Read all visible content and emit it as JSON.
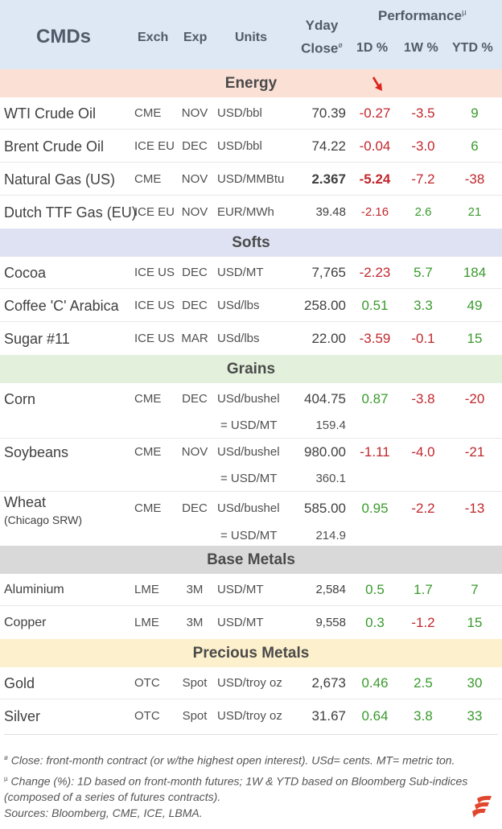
{
  "header": {
    "title": "CMDs",
    "exch": "Exch",
    "exp": "Exp",
    "units": "Units",
    "yday_line1": "Yday",
    "yday_line2": "Close",
    "yday_mark": "ø",
    "performance": "Performance",
    "performance_mark": "µ",
    "d1": "1D %",
    "w1": "1W %",
    "ytd": "YTD %"
  },
  "colors": {
    "header_bg": "#dde8f4",
    "energy_bg": "#fbe0d6",
    "softs_bg": "#dfe2f3",
    "grains_bg": "#e3f1dc",
    "base_metals_bg": "#d9d9d9",
    "precious_bg": "#fdf0cc",
    "negative": "#c0272d",
    "positive": "#3a9a2e",
    "arrow": "#d9261c",
    "logo": "#e2452d"
  },
  "sections": {
    "energy": "Energy",
    "softs": "Softs",
    "grains": "Grains",
    "base_metals": "Base Metals",
    "precious_metals": "Precious Metals"
  },
  "rows": {
    "wti": {
      "name": "WTI Crude Oil",
      "exch": "CME",
      "exp": "NOV",
      "units": "USD/bbl",
      "close": "70.39",
      "d1": "-0.27",
      "w1": "-3.5",
      "ytd": "9"
    },
    "brent": {
      "name": "Brent Crude Oil",
      "exch": "ICE EU",
      "exp": "DEC",
      "units": "USD/bbl",
      "close": "74.22",
      "d1": "-0.04",
      "w1": "-3.0",
      "ytd": "6"
    },
    "natgas": {
      "name": "Natural Gas (US)",
      "exch": "CME",
      "exp": "NOV",
      "units": "USD/MMBtu",
      "close": "2.367",
      "d1": "-5.24",
      "w1": "-7.2",
      "ytd": "-38"
    },
    "ttf": {
      "name": "Dutch TTF Gas (EU)",
      "exch": "ICE EU",
      "exp": "NOV",
      "units": "EUR/MWh",
      "close": "39.48",
      "d1": "-2.16",
      "w1": "2.6",
      "ytd": "21"
    },
    "cocoa": {
      "name": "Cocoa",
      "exch": "ICE US",
      "exp": "DEC",
      "units": "USD/MT",
      "close": "7,765",
      "d1": "-2.23",
      "w1": "5.7",
      "ytd": "184"
    },
    "coffee": {
      "name": "Coffee 'C' Arabica",
      "exch": "ICE US",
      "exp": "DEC",
      "units": "USd/lbs",
      "close": "258.00",
      "d1": "0.51",
      "w1": "3.3",
      "ytd": "49"
    },
    "sugar": {
      "name": "Sugar #11",
      "exch": "ICE US",
      "exp": "MAR",
      "units": "USd/lbs",
      "close": "22.00",
      "d1": "-3.59",
      "w1": "-0.1",
      "ytd": "15"
    },
    "corn": {
      "name": "Corn",
      "exch": "CME",
      "exp": "DEC",
      "units": "USd/bushel",
      "close": "404.75",
      "d1": "0.87",
      "w1": "-3.8",
      "ytd": "-20",
      "conv_label": "= USD/MT",
      "conv_value": "159.4"
    },
    "soy": {
      "name": "Soybeans",
      "exch": "CME",
      "exp": "NOV",
      "units": "USd/bushel",
      "close": "980.00",
      "d1": "-1.11",
      "w1": "-4.0",
      "ytd": "-21",
      "conv_label": "= USD/MT",
      "conv_value": "360.1"
    },
    "wheat": {
      "name": "Wheat",
      "subname": "(Chicago SRW)",
      "exch": "CME",
      "exp": "DEC",
      "units": "USd/bushel",
      "close": "585.00",
      "d1": "0.95",
      "w1": "-2.2",
      "ytd": "-13",
      "conv_label": "= USD/MT",
      "conv_value": "214.9"
    },
    "alu": {
      "name": "Aluminium",
      "exch": "LME",
      "exp": "3M",
      "units": "USD/MT",
      "close": "2,584",
      "d1": "0.5",
      "w1": "1.7",
      "ytd": "7"
    },
    "copper": {
      "name": "Copper",
      "exch": "LME",
      "exp": "3M",
      "units": "USD/MT",
      "close": "9,558",
      "d1": "0.3",
      "w1": "-1.2",
      "ytd": "15"
    },
    "gold": {
      "name": "Gold",
      "exch": "OTC",
      "exp": "Spot",
      "units": "USD/troy oz",
      "close": "2,673",
      "d1": "0.46",
      "w1": "2.5",
      "ytd": "30"
    },
    "silver": {
      "name": "Silver",
      "exch": "OTC",
      "exp": "Spot",
      "units": "USD/troy oz",
      "close": "31.67",
      "d1": "0.64",
      "w1": "3.8",
      "ytd": "33"
    }
  },
  "footer": {
    "mark1": "ø",
    "note1": " Close: front-month contract (or w/the highest open interest). USd= cents. MT= metric ton.",
    "mark2": "µ",
    "note2": " Change (%): 1D based on front-month futures; 1W & YTD based on Bloomberg Sub-indices (composed of a series of futures contracts).",
    "sources": "Sources: Bloomberg, CME, ICE, LBMA."
  },
  "icons": {
    "arrow": "down-right-arrow-icon",
    "logo": "brand-logo-icon"
  }
}
